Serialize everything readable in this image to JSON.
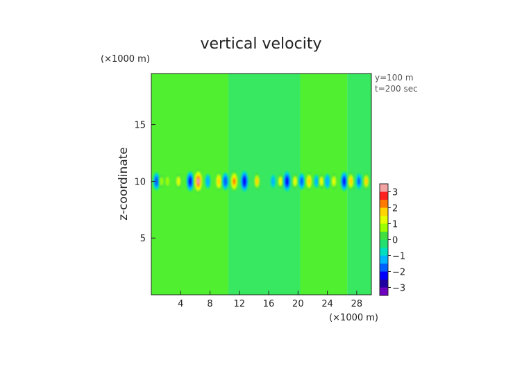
{
  "chart_data": {
    "type": "heatmap",
    "title": "vertical velocity",
    "xlabel": "",
    "ylabel": "z-coordinate",
    "x_unit": "(×1000 m)",
    "y_unit": "(×1000 m)",
    "info_lines": [
      "y=100  m",
      "t=200 sec"
    ],
    "x_ticks": [
      4,
      8,
      12,
      16,
      20,
      24,
      28
    ],
    "y_ticks": [
      5,
      10,
      15
    ],
    "xlim": [
      0,
      30
    ],
    "ylim": [
      0,
      19.5
    ],
    "colorbar": {
      "ticks": [
        3,
        2,
        1,
        0,
        -1,
        -2,
        -3
      ],
      "range": [
        -3.5,
        3.5
      ],
      "colors": [
        "#f4a3a3",
        "#ff2020",
        "#ff7a00",
        "#ffd400",
        "#e5ff00",
        "#9cff00",
        "#40e040",
        "#22e070",
        "#00e0c0",
        "#00b4ff",
        "#0060ff",
        "#0000ff",
        "#2000a0",
        "#7000c0"
      ]
    },
    "background_bands": [
      {
        "x0": 0,
        "x1": 10.5,
        "value": 0.05
      },
      {
        "x0": 10.5,
        "x1": 20.3,
        "value": -0.05
      },
      {
        "x0": 20.3,
        "x1": 26.7,
        "value": 0.05
      },
      {
        "x0": 26.7,
        "x1": 30,
        "value": -0.05
      }
    ],
    "cells": [
      {
        "x": 0.7,
        "z": 10,
        "v": -1.8
      },
      {
        "x": 1.4,
        "z": 10,
        "v": 0.9
      },
      {
        "x": 2.2,
        "z": 10,
        "v": 0.7
      },
      {
        "x": 3.7,
        "z": 10,
        "v": 1.3
      },
      {
        "x": 5.3,
        "z": 10,
        "v": -2.2
      },
      {
        "x": 6.4,
        "z": 10,
        "v": 3.1
      },
      {
        "x": 7.7,
        "z": 10,
        "v": -1.2
      },
      {
        "x": 9.2,
        "z": 10,
        "v": 2.0
      },
      {
        "x": 10.1,
        "z": 10,
        "v": -1.8
      },
      {
        "x": 11.3,
        "z": 10,
        "v": 2.4
      },
      {
        "x": 12.7,
        "z": 10,
        "v": -2.4
      },
      {
        "x": 14.4,
        "z": 10,
        "v": 1.6
      },
      {
        "x": 16.6,
        "z": 10,
        "v": -1.0
      },
      {
        "x": 17.6,
        "z": 10,
        "v": 1.2
      },
      {
        "x": 18.5,
        "z": 10,
        "v": -2.3
      },
      {
        "x": 19.6,
        "z": 10,
        "v": 1.3
      },
      {
        "x": 20.5,
        "z": 10,
        "v": -1.6
      },
      {
        "x": 21.5,
        "z": 10,
        "v": 1.9
      },
      {
        "x": 22.5,
        "z": 10,
        "v": -1.0
      },
      {
        "x": 23.2,
        "z": 10,
        "v": 1.2
      },
      {
        "x": 24.0,
        "z": 10,
        "v": -1.3
      },
      {
        "x": 24.9,
        "z": 10,
        "v": 1.4
      },
      {
        "x": 26.3,
        "z": 10,
        "v": -2.1
      },
      {
        "x": 27.2,
        "z": 10,
        "v": 1.8
      },
      {
        "x": 28.3,
        "z": 10,
        "v": -1.5
      },
      {
        "x": 29.3,
        "z": 10,
        "v": 1.6
      }
    ]
  }
}
